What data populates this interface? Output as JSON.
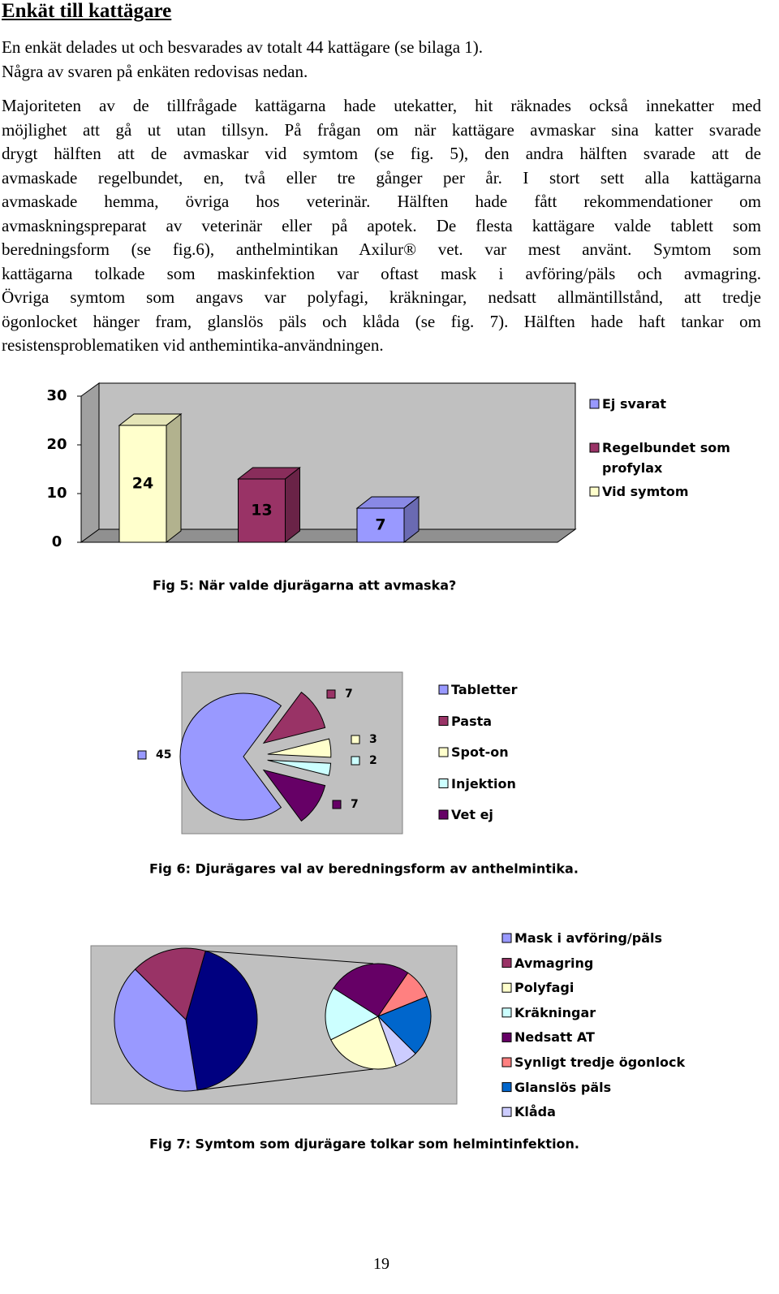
{
  "title": "Enkät till kattägare",
  "paragraphs": [
    [
      "En enkät delades ut och besvarades av totalt 44 kattägare (se bilaga 1).",
      "Några av svaren på enkäten redovisas nedan."
    ],
    [
      "Majoriteten av de tillfrågade kattägarna hade utekatter, hit räknades också innekatter med",
      "möjlighet att gå ut utan tillsyn. På frågan om när kattägare avmaskar sina katter svarade",
      "drygt hälften att de avmaskar vid symtom (se fig. 5), den andra hälften svarade att de",
      "avmaskade regelbundet, en, två eller tre gånger per år. I stort sett alla kattägarna",
      "avmaskade hemma, övriga hos veterinär. Hälften hade fått rekommendationer om",
      "avmaskningspreparat av veterinär eller på apotek. De flesta kattägare valde tablett som",
      "beredningsform (se fig.6), anthelmintikan Axilur® vet. var mest använt. Symtom som",
      "kattägarna tolkade som maskinfektion var oftast mask i avföring/päls och avmagring.",
      "Övriga symtom som angavs var polyfagi, kräkningar, nedsatt allmäntillstånd, att tredje",
      "ögonlocket hänger fram, glanslös päls och klåda (se fig. 7). Hälften hade haft tankar om",
      "resistensproblematiken vid anthemintika-användningen."
    ]
  ],
  "chart_data": [
    {
      "type": "bar",
      "title": "Fig 5: När valde djurägarna att avmaska?",
      "series": [
        {
          "name": "Vid symtom",
          "color": "#ffffcc",
          "values": [
            24
          ]
        },
        {
          "name": "Regelbundet som profylax",
          "color": "#993366",
          "values": [
            13
          ]
        },
        {
          "name": "Ej svarat",
          "color": "#9999ff",
          "values": [
            7
          ]
        }
      ],
      "ylim": [
        0,
        30
      ],
      "yticks": [
        0,
        10,
        20,
        30
      ],
      "legend": "right"
    },
    {
      "type": "pie",
      "title": "Fig 6: Djurägares val av beredningsform av anthelmintika.",
      "categories": [
        "Tabletter",
        "Pasta",
        "Spot-on",
        "Injektion",
        "Vet ej"
      ],
      "values": [
        45,
        7,
        3,
        2,
        7
      ],
      "colors": [
        "#9999ff",
        "#993366",
        "#ffffcc",
        "#ccffff",
        "#660066"
      ],
      "legend": "right"
    },
    {
      "type": "pieofpie",
      "title": "Fig 7: Symtom som djurägare tolkar som helmintinfektion.",
      "categories": [
        "Mask i avföring/päls",
        "Avmagring",
        "Polyfagi",
        "Kräkningar",
        "Nedsatt AT",
        "Synligt tredje ögonlock",
        "Glanslös päls",
        "Klåda"
      ],
      "values": [
        40,
        17,
        10,
        7,
        11,
        4,
        8,
        3
      ],
      "colors": [
        "#9999ff",
        "#993366",
        "#ffffcc",
        "#ccffff",
        "#660066",
        "#ff8080",
        "#0066cc",
        "#ccccff"
      ],
      "other_color": "#000080",
      "legend": "right"
    }
  ],
  "page_number": "19"
}
